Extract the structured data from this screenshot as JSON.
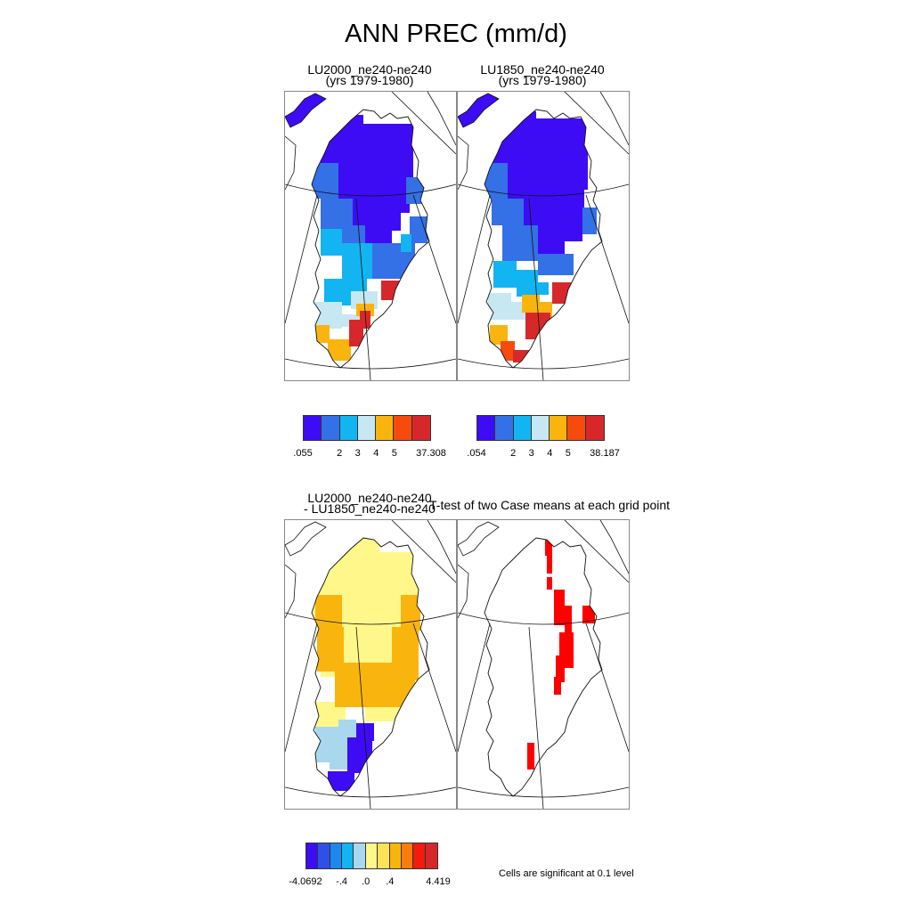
{
  "figure_title": "ANN PREC (mm/d)",
  "panels": {
    "top_left": {
      "line1": "LU2000_ne240-ne240",
      "line2": "(yrs 1979-1980)"
    },
    "top_right": {
      "line1": "LU1850_ne240-ne240",
      "line2": "(yrs 1979-1980)"
    },
    "bottom_left": {
      "line1": "LU2000_ne240-ne240",
      "line2": "- LU1850_ne240-ne240"
    },
    "bottom_right": {
      "line1": "T-test of two Case means at each grid point"
    }
  },
  "colorbars": {
    "left": {
      "colors": [
        "#3d0cf5",
        "#3470e6",
        "#12b4f2",
        "#c7e7f3",
        "#f9b50e",
        "#f74a0d",
        "#d6282a"
      ],
      "labels": [
        ".055",
        "2",
        "3",
        "4",
        "5",
        "37.308"
      ]
    },
    "right": {
      "colors": [
        "#3d0cf5",
        "#3470e6",
        "#12b4f2",
        "#c7e7f3",
        "#f9b50e",
        "#f74a0d",
        "#d6282a"
      ],
      "labels": [
        ".054",
        "2",
        "3",
        "4",
        "5",
        "38.187"
      ]
    },
    "diff": {
      "colors": [
        "#3d0cf5",
        "#2e50e8",
        "#1d86ef",
        "#12b4f2",
        "#a9d7ee",
        "#fff78a",
        "#fde257",
        "#f9b50e",
        "#f87d0c",
        "#f21b0e",
        "#d6282a"
      ],
      "labels": [
        "-4.0692",
        "-.4",
        ".0",
        ".4",
        "4.419"
      ]
    }
  },
  "significance_note": "Cells are significant at 0.1 level",
  "palette": {
    "prec_low": "#3d0cf5",
    "prec_2": "#3470e6",
    "prec_3": "#12b4f2",
    "prec_4": "#c7e7f3",
    "prec_5": "#f9b50e",
    "prec_6": "#f74a0d",
    "prec_high": "#d6282a",
    "diff_pos_small": "#fff78a",
    "diff_pos_mid": "#f9b50e",
    "diff_neg_small": "#a9d7ee",
    "diff_neg_large": "#3d0cf5",
    "significant": "#ff0000"
  }
}
